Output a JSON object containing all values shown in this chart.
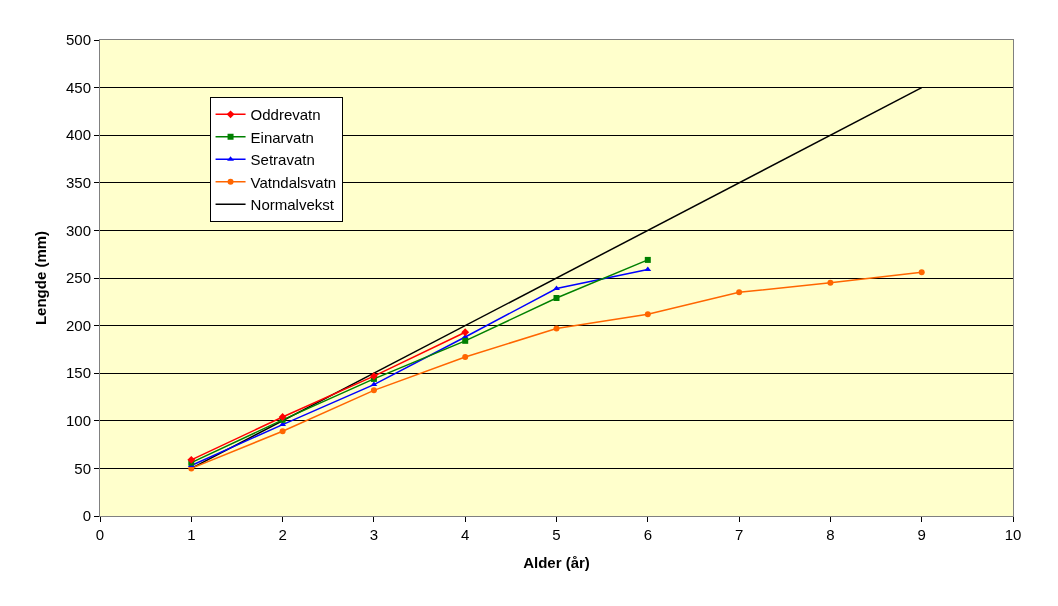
{
  "chart_data": {
    "type": "line",
    "xlabel": "Alder (år)",
    "ylabel": "Lengde (mm)",
    "xlim": [
      0,
      10
    ],
    "xticks": [
      0,
      1,
      2,
      3,
      4,
      5,
      6,
      7,
      8,
      9,
      10
    ],
    "ylim": [
      0,
      500
    ],
    "yticks": [
      0,
      50,
      100,
      150,
      200,
      250,
      300,
      350,
      400,
      450,
      500
    ],
    "grid": "y",
    "legend": "top left",
    "series": [
      {
        "name": "Oddrevatn",
        "color": "#ff0000",
        "marker": "diamond",
        "x": [
          1,
          2,
          3,
          4
        ],
        "values": [
          59,
          104,
          147,
          193
        ]
      },
      {
        "name": "Einarvatn",
        "color": "#008000",
        "marker": "square",
        "x": [
          1,
          2,
          3,
          4,
          5,
          6
        ],
        "values": [
          56,
          101,
          144,
          184,
          229,
          269
        ]
      },
      {
        "name": "Setravatn",
        "color": "#0000ff",
        "marker": "triangle",
        "x": [
          1,
          2,
          3,
          4,
          5,
          6
        ],
        "values": [
          53,
          96,
          138,
          188,
          239,
          259
        ]
      },
      {
        "name": "Vatndalsvatn",
        "color": "#ff6600",
        "marker": "circle",
        "x": [
          1,
          2,
          3,
          4,
          5,
          6,
          7,
          8,
          9
        ],
        "values": [
          50,
          89,
          132,
          167,
          197,
          212,
          235,
          245,
          256
        ]
      },
      {
        "name": "Normalvekst",
        "color": "#000000",
        "marker": "none",
        "x": [
          1,
          9
        ],
        "values": [
          50,
          450
        ]
      }
    ]
  }
}
